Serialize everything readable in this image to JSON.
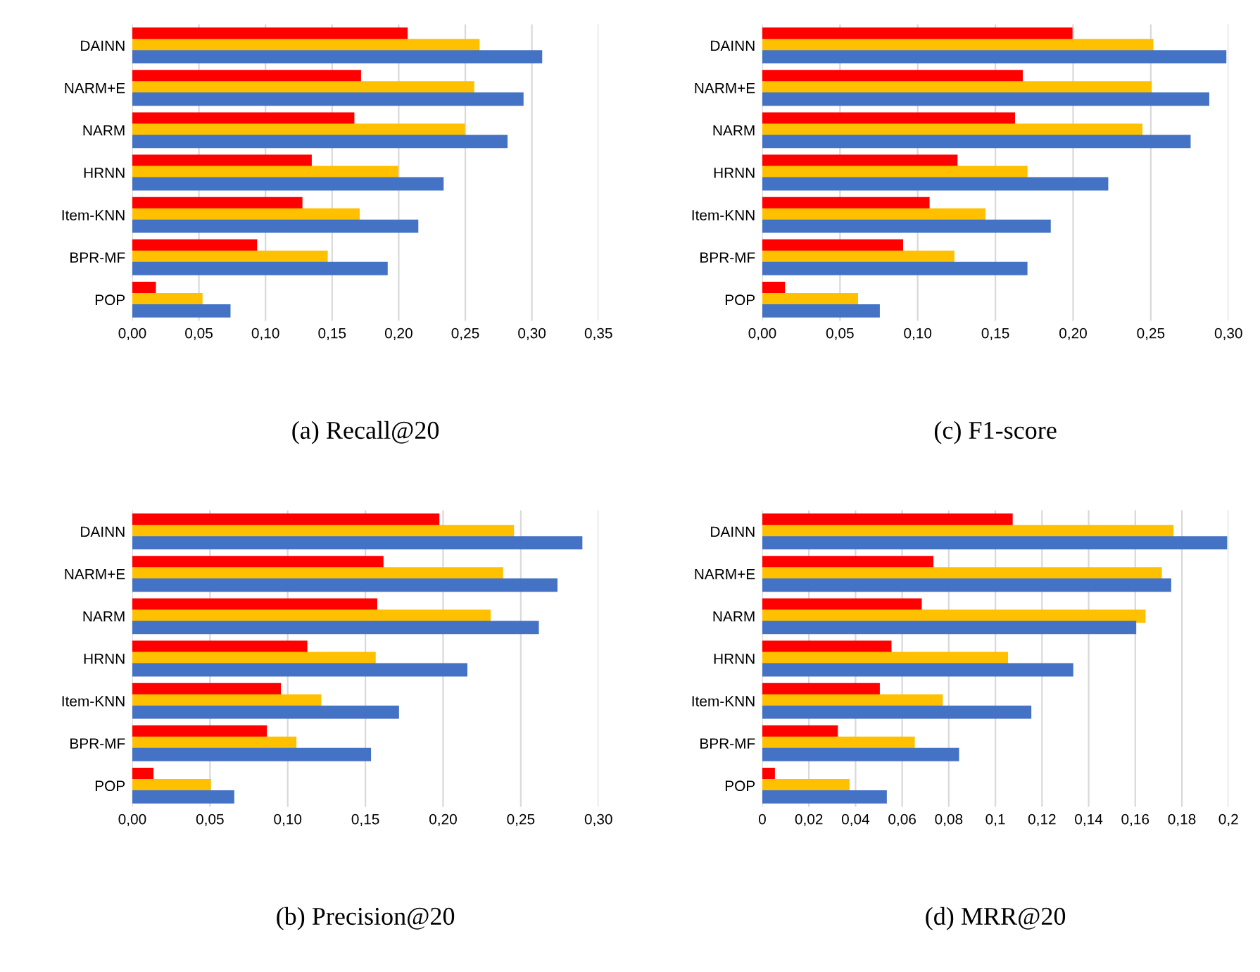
{
  "chart_data": [
    {
      "type": "bar",
      "orientation": "horizontal",
      "title": "(a) Recall@20",
      "categories": [
        "DAINN",
        "NARM+E",
        "NARM",
        "HRNN",
        "Item-KNN",
        "BPR-MF",
        "POP"
      ],
      "grid": "x",
      "xlim": [
        0,
        0.35
      ],
      "xticks": [
        {
          "value": 0,
          "label": "0,00"
        },
        {
          "value": 0.05,
          "label": "0,05"
        },
        {
          "value": 0.1,
          "label": "0,10"
        },
        {
          "value": 0.15,
          "label": "0,15"
        },
        {
          "value": 0.2,
          "label": "0,20"
        },
        {
          "value": 0.25,
          "label": "0,25"
        },
        {
          "value": 0.3,
          "label": "0,30"
        },
        {
          "value": 0.35,
          "label": "0,35"
        }
      ],
      "series": [
        {
          "color": "#ff0000",
          "values": [
            0.206,
            0.171,
            0.166,
            0.134,
            0.127,
            0.093,
            0.017
          ]
        },
        {
          "color": "#ffc000",
          "values": [
            0.26,
            0.256,
            0.249,
            0.199,
            0.17,
            0.146,
            0.052
          ]
        },
        {
          "color": "#4472c4",
          "values": [
            0.307,
            0.293,
            0.281,
            0.233,
            0.214,
            0.191,
            0.073
          ]
        }
      ]
    },
    {
      "type": "bar",
      "orientation": "horizontal",
      "title": "(c) F1-score",
      "categories": [
        "DAINN",
        "NARM+E",
        "NARM",
        "HRNN",
        "Item-KNN",
        "BPR-MF",
        "POP"
      ],
      "grid": "x",
      "xlim": [
        0,
        0.3
      ],
      "xticks": [
        {
          "value": 0,
          "label": "0,00"
        },
        {
          "value": 0.05,
          "label": "0,05"
        },
        {
          "value": 0.1,
          "label": "0,10"
        },
        {
          "value": 0.15,
          "label": "0,15"
        },
        {
          "value": 0.2,
          "label": "0,20"
        },
        {
          "value": 0.25,
          "label": "0,25"
        },
        {
          "value": 0.3,
          "label": "0,30"
        }
      ],
      "series": [
        {
          "color": "#ff0000",
          "values": [
            0.199,
            0.167,
            0.162,
            0.125,
            0.107,
            0.09,
            0.014
          ]
        },
        {
          "color": "#ffc000",
          "values": [
            0.251,
            0.25,
            0.244,
            0.17,
            0.143,
            0.123,
            0.061
          ]
        },
        {
          "color": "#4472c4",
          "values": [
            0.298,
            0.287,
            0.275,
            0.222,
            0.185,
            0.17,
            0.075
          ]
        }
      ]
    },
    {
      "type": "bar",
      "orientation": "horizontal",
      "title": "(b) Precision@20",
      "categories": [
        "DAINN",
        "NARM+E",
        "NARM",
        "HRNN",
        "Item-KNN",
        "BPR-MF",
        "POP"
      ],
      "grid": "x",
      "xlim": [
        0,
        0.3
      ],
      "xticks": [
        {
          "value": 0,
          "label": "0,00"
        },
        {
          "value": 0.05,
          "label": "0,05"
        },
        {
          "value": 0.1,
          "label": "0,10"
        },
        {
          "value": 0.15,
          "label": "0,15"
        },
        {
          "value": 0.2,
          "label": "0,20"
        },
        {
          "value": 0.25,
          "label": "0,25"
        },
        {
          "value": 0.3,
          "label": "0,30"
        }
      ],
      "series": [
        {
          "color": "#ff0000",
          "values": [
            0.197,
            0.161,
            0.157,
            0.112,
            0.095,
            0.086,
            0.013
          ]
        },
        {
          "color": "#ffc000",
          "values": [
            0.245,
            0.238,
            0.23,
            0.156,
            0.121,
            0.105,
            0.05
          ]
        },
        {
          "color": "#4472c4",
          "values": [
            0.289,
            0.273,
            0.261,
            0.215,
            0.171,
            0.153,
            0.065
          ]
        }
      ]
    },
    {
      "type": "bar",
      "orientation": "horizontal",
      "title": "(d) MRR@20",
      "categories": [
        "DAINN",
        "NARM+E",
        "NARM",
        "HRNN",
        "Item-KNN",
        "BPR-MF",
        "POP"
      ],
      "grid": "x",
      "xlim": [
        0,
        0.2
      ],
      "xticks": [
        0,
        {
          "value": 0.02,
          "label": "0,02"
        },
        {
          "value": 0.04,
          "label": "0,04"
        },
        {
          "value": 0.06,
          "label": "0,06"
        },
        {
          "value": 0.08,
          "label": "0,08"
        },
        {
          "value": 0.1,
          "label": "0,1"
        },
        {
          "value": 0.12,
          "label": "0,12"
        },
        {
          "value": 0.14,
          "label": "0,14"
        },
        {
          "value": 0.16,
          "label": "0,16"
        },
        {
          "value": 0.18,
          "label": "0,18"
        },
        {
          "value": 0.2,
          "label": "0,2"
        }
      ],
      "series": [
        {
          "color": "#ff0000",
          "values": [
            0.107,
            0.073,
            0.068,
            0.055,
            0.05,
            0.032,
            0.005
          ]
        },
        {
          "color": "#ffc000",
          "values": [
            0.176,
            0.171,
            0.164,
            0.105,
            0.077,
            0.065,
            0.037
          ]
        },
        {
          "color": "#4472c4",
          "values": [
            0.199,
            0.175,
            0.16,
            0.133,
            0.115,
            0.084,
            0.053
          ]
        }
      ]
    }
  ]
}
